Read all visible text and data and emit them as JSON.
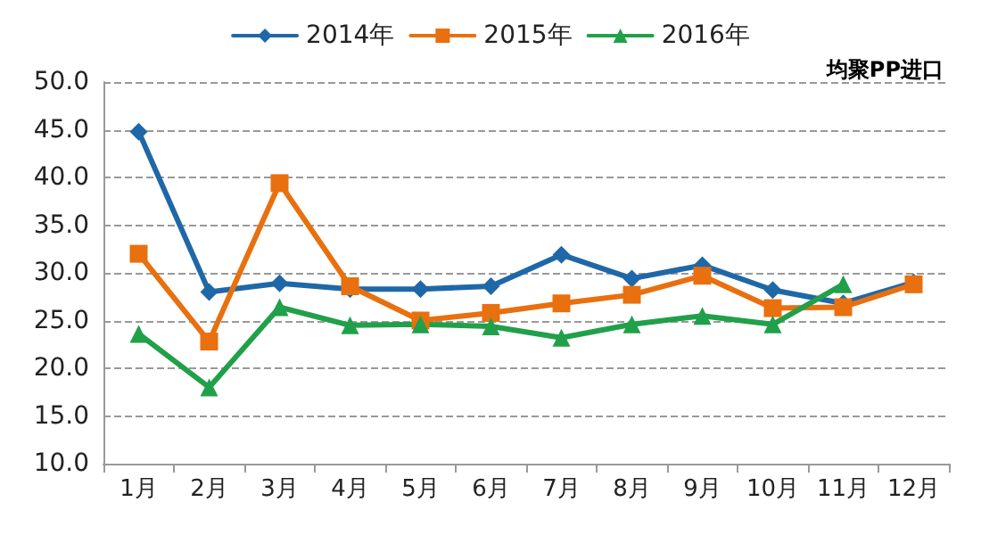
{
  "chart_data": {
    "type": "line",
    "title": "均聚PP进口",
    "categories": [
      "1月",
      "2月",
      "3月",
      "4月",
      "5月",
      "6月",
      "7月",
      "8月",
      "9月",
      "10月",
      "11月",
      "12月"
    ],
    "series": [
      {
        "name": "2014年",
        "color": "#1f68a8",
        "marker": "diamond",
        "values": [
          44.8,
          28.0,
          28.9,
          28.3,
          28.3,
          28.6,
          31.9,
          29.4,
          30.8,
          28.2,
          26.8,
          29.0
        ]
      },
      {
        "name": "2015年",
        "color": "#e8700f",
        "marker": "square",
        "values": [
          32.0,
          22.8,
          39.4,
          28.6,
          25.0,
          25.8,
          26.8,
          27.7,
          29.7,
          26.3,
          26.4,
          28.8
        ]
      },
      {
        "name": "2016年",
        "color": "#21a04a",
        "marker": "triangle",
        "values": [
          23.6,
          18.0,
          26.4,
          24.5,
          24.6,
          24.4,
          23.2,
          24.6,
          25.5,
          24.6,
          28.8,
          null
        ]
      }
    ],
    "ylim": [
      10,
      50
    ],
    "yticks": [
      {
        "value": 10,
        "label": "10.0"
      },
      {
        "value": 15,
        "label": "15.0"
      },
      {
        "value": 20,
        "label": "20.0"
      },
      {
        "value": 25,
        "label": "25.0"
      },
      {
        "value": 30,
        "label": "30.0"
      },
      {
        "value": 35,
        "label": "35.0"
      },
      {
        "value": 40,
        "label": "40.0"
      },
      {
        "value": 45,
        "label": "45.0"
      },
      {
        "value": 50,
        "label": "50.0"
      }
    ],
    "grid": "y",
    "legend": "top",
    "line_style": "solid"
  }
}
